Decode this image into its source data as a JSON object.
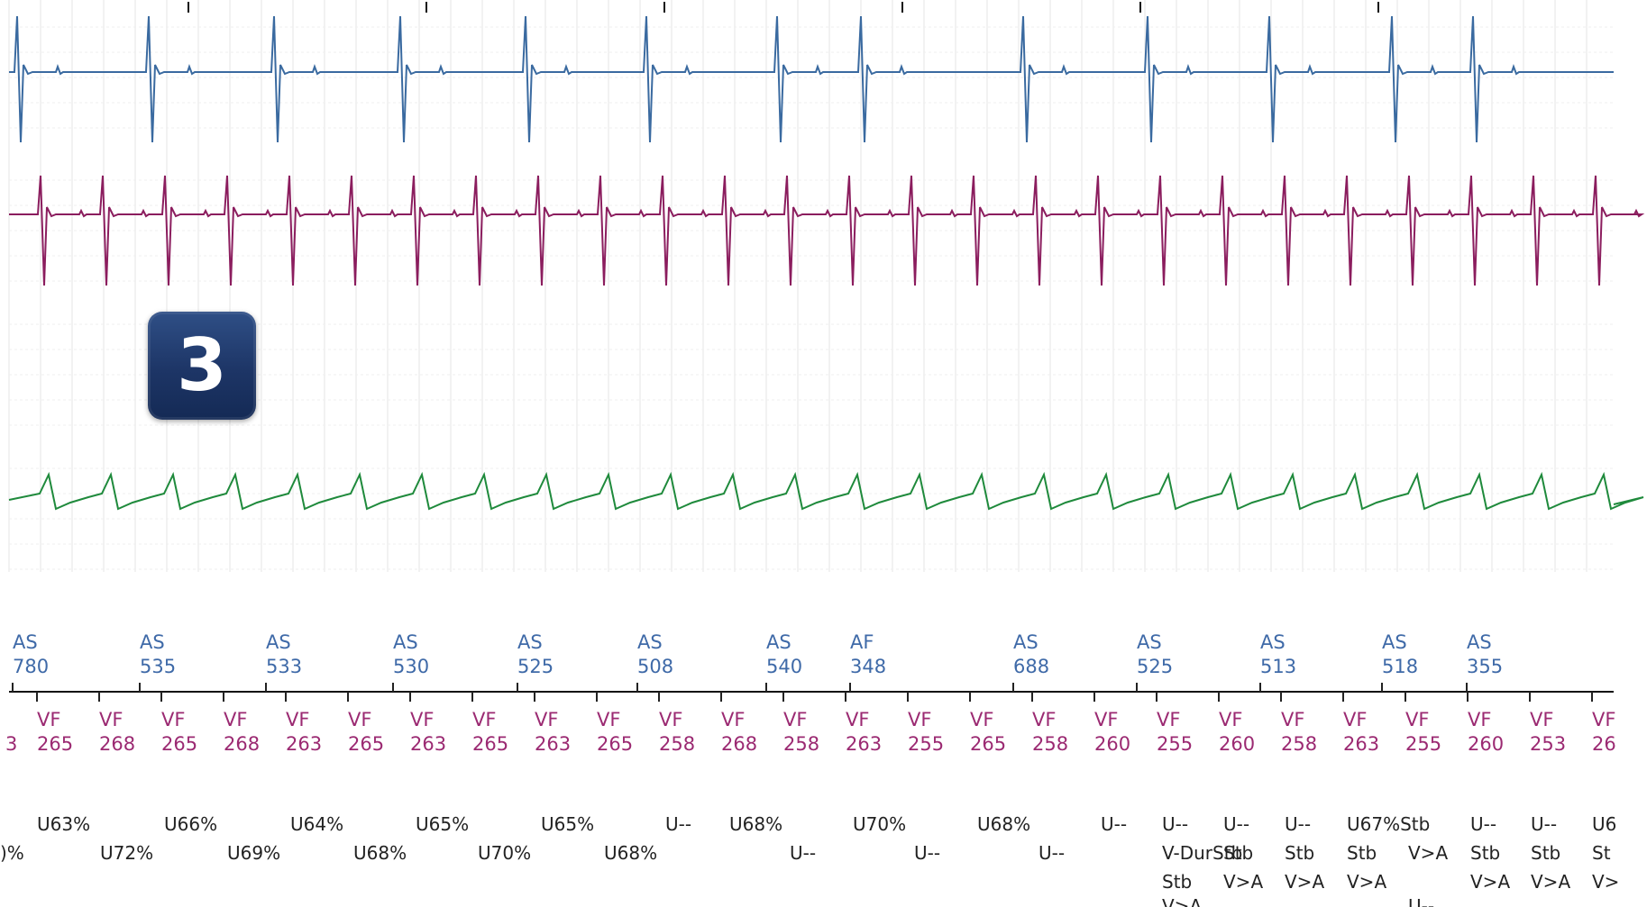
{
  "badge": {
    "label": "3"
  },
  "colors": {
    "channel_1": "#3a6aa0",
    "channel_2": "#8b1d5e",
    "channel_3": "#1f8a3c",
    "atrial_markers": "#3f6aa8",
    "ventricular_markers": "#9b2a72",
    "status_text": "#222222",
    "grid": "#e6e6e6",
    "badge": "#1d3566"
  },
  "atrial_markers": [
    {
      "type": "AS",
      "interval": "780"
    },
    {
      "type": "AS",
      "interval": "535"
    },
    {
      "type": "AS",
      "interval": "533"
    },
    {
      "type": "AS",
      "interval": "530"
    },
    {
      "type": "AS",
      "interval": "525"
    },
    {
      "type": "AS",
      "interval": "508"
    },
    {
      "type": "AS",
      "interval": "540"
    },
    {
      "type": "AF",
      "interval": "348"
    },
    {
      "type": "AS",
      "interval": "688"
    },
    {
      "type": "AS",
      "interval": "525"
    },
    {
      "type": "AS",
      "interval": "513"
    },
    {
      "type": "AS",
      "interval": "518"
    },
    {
      "type": "AS",
      "interval": "355"
    }
  ],
  "ventricular_markers": [
    {
      "type": "",
      "interval": "3"
    },
    {
      "type": "VF",
      "interval": "265"
    },
    {
      "type": "VF",
      "interval": "268"
    },
    {
      "type": "VF",
      "interval": "265"
    },
    {
      "type": "VF",
      "interval": "268"
    },
    {
      "type": "VF",
      "interval": "263"
    },
    {
      "type": "VF",
      "interval": "265"
    },
    {
      "type": "VF",
      "interval": "263"
    },
    {
      "type": "VF",
      "interval": "265"
    },
    {
      "type": "VF",
      "interval": "263"
    },
    {
      "type": "VF",
      "interval": "265"
    },
    {
      "type": "VF",
      "interval": "258"
    },
    {
      "type": "VF",
      "interval": "268"
    },
    {
      "type": "VF",
      "interval": "258"
    },
    {
      "type": "VF",
      "interval": "263"
    },
    {
      "type": "VF",
      "interval": "255"
    },
    {
      "type": "VF",
      "interval": "265"
    },
    {
      "type": "VF",
      "interval": "258"
    },
    {
      "type": "VF",
      "interval": "260"
    },
    {
      "type": "VF",
      "interval": "255"
    },
    {
      "type": "VF",
      "interval": "260"
    },
    {
      "type": "VF",
      "interval": "258"
    },
    {
      "type": "VF",
      "interval": "263"
    },
    {
      "type": "VF",
      "interval": "255"
    },
    {
      "type": "VF",
      "interval": "260"
    },
    {
      "type": "VF",
      "interval": "253"
    },
    {
      "type": "VF",
      "interval": "26"
    }
  ],
  "status_labels": [
    "U63%",
    "U66%",
    "U64%",
    "U65%",
    "U65%",
    "U--",
    "U68%",
    "U70%",
    "U68%",
    "U--",
    "U--",
    "U--",
    "U--",
    "U67%Stb",
    "U--",
    "U--",
    "U6",
    ")%",
    "U72%",
    "U69%",
    "U68%",
    "U70%",
    "U68%",
    "U--",
    "U--",
    "U--",
    "V-DurStb",
    "Stb",
    "Stb",
    "Stb",
    "V>A",
    "Stb",
    "Stb",
    "St",
    "Stb",
    "V>A",
    "V>A",
    "V>A",
    "V>A",
    "V>A",
    "V>",
    "V>A",
    "U--"
  ]
}
